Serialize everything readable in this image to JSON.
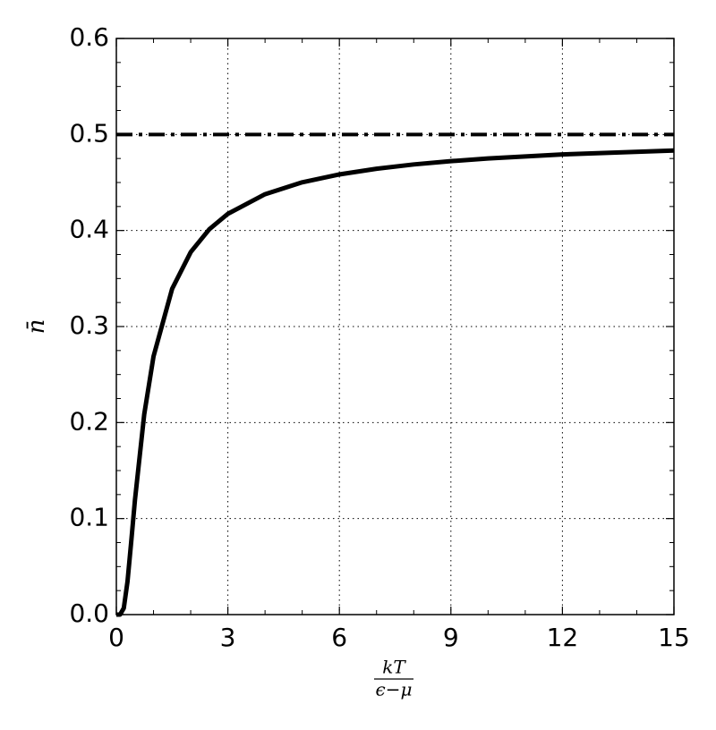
{
  "chart_data": {
    "type": "line",
    "xlabel": {
      "numerator": "kT",
      "denominator": "ϵ−μ"
    },
    "ylabel": "n̄",
    "x": [
      0,
      0.1,
      0.2,
      0.3,
      0.4,
      0.5,
      0.75,
      1,
      1.5,
      2,
      2.5,
      3,
      4,
      5,
      6,
      7,
      8,
      9,
      10,
      12,
      15
    ],
    "series": [
      {
        "color": "#000000",
        "values": [
          0,
          4.54e-05,
          0.0067,
          0.0344,
          0.0759,
          0.1192,
          0.2086,
          0.2689,
          0.3392,
          0.3775,
          0.4013,
          0.4174,
          0.4378,
          0.4502,
          0.4584,
          0.4643,
          0.4688,
          0.4722,
          0.475,
          0.4792,
          0.4833
        ]
      }
    ],
    "reference_line": {
      "y": 0.5,
      "color": "#000000",
      "style": "dash-dot"
    },
    "xlim": [
      0,
      15
    ],
    "xticks": [
      0,
      3,
      6,
      9,
      12,
      15
    ],
    "ylim": [
      0,
      0.6
    ],
    "yticks": [
      {
        "value": 0,
        "label": "0.0"
      },
      0.1,
      0.2,
      0.3,
      0.4,
      0.5,
      0.6
    ],
    "minor_divisions": {
      "x": 3,
      "y": 4
    },
    "grid": true
  }
}
